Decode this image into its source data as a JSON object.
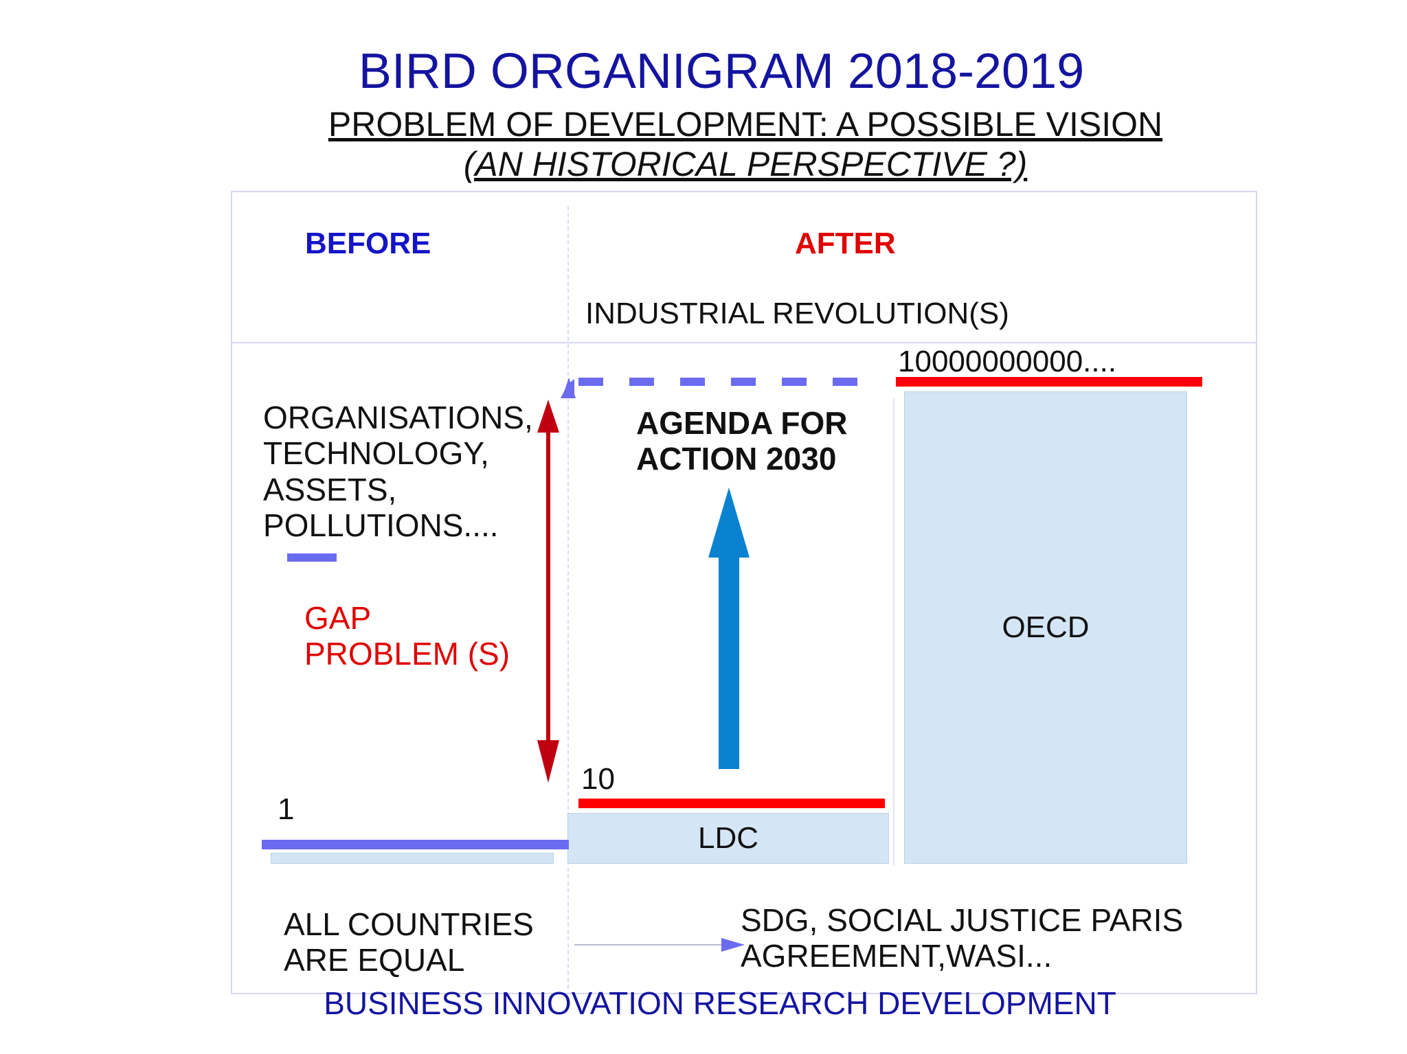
{
  "title": "BIRD ORGANIGRAM 2018-2019",
  "subtitle_line1": "PROBLEM OF DEVELOPMENT: A POSSIBLE VISION ",
  "subtitle_line2": "(AN HISTORICAL PERSPECTIVE ?)",
  "header": {
    "before": "BEFORE",
    "after": "AFTER",
    "industrial_revolution": "INDUSTRIAL REVOLUTION(S)"
  },
  "levels": {
    "one": "1",
    "ten": "10",
    "big": "10000000000...."
  },
  "left_text": {
    "line1": "ORGANISATIONS,",
    "line2": "TECHNOLOGY,",
    "line3": "ASSETS,",
    "line4": "POLLUTIONS...."
  },
  "gap": {
    "line1": "GAP",
    "line2": "PROBLEM (S)"
  },
  "agenda": {
    "line1": "AGENDA FOR",
    "line2": "ACTION 2030"
  },
  "boxes": {
    "ldc": "LDC",
    "oecd": "OECD"
  },
  "bottom_left": {
    "line1": "ALL COUNTRIES",
    "line2": "ARE EQUAL"
  },
  "bottom_right": {
    "line1": "SDG, SOCIAL JUSTICE PARIS",
    "line2": "AGREEMENT,WASI..."
  },
  "footer": "BUSINESS INNOVATION RESEARCH DEVELOPMENT",
  "colors": {
    "title_blue": "#1414a0",
    "before_blue": "#1414c8",
    "after_red": "#e00000",
    "level_bar_blue": "#6b6bf0",
    "level_bar_red": "#ff0000",
    "gap_arrow": "#c00010",
    "agenda_arrow": "#0a82d0",
    "box_fill": "#d4e6f5"
  }
}
